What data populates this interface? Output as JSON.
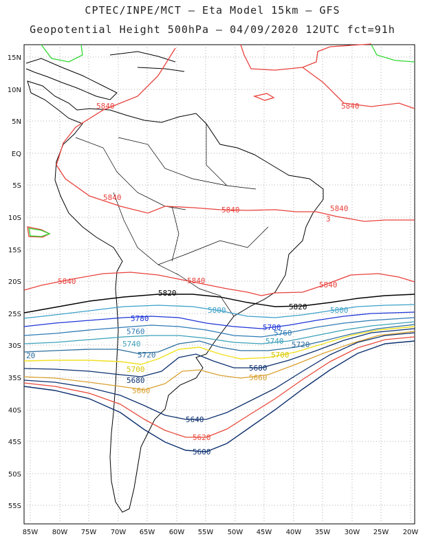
{
  "header": {
    "line1": "CPTEC/INPE/MCT –  Eta Model 15km – GFS",
    "line2": "Geopotential Height 500hPa – 04/09/2020 12UTC fct=91h"
  },
  "axes": {
    "lat_labels": [
      "15N",
      "10N",
      "5N",
      "EQ",
      "5S",
      "10S",
      "15S",
      "20S",
      "25S",
      "30S",
      "35S",
      "40S",
      "45S",
      "50S",
      "55S"
    ],
    "lon_labels": [
      "85W",
      "80W",
      "75W",
      "70W",
      "65W",
      "60W",
      "55W",
      "50W",
      "45W",
      "40W",
      "35W",
      "30W",
      "25W",
      "20W"
    ]
  },
  "contours": [
    {
      "value": "5840",
      "color": "#e8413c"
    },
    {
      "value": "5820",
      "color": "#000000"
    },
    {
      "value": "5800",
      "color": "#3ba0c8"
    },
    {
      "value": "5780",
      "color": "#1e35d6"
    },
    {
      "value": "5760",
      "color": "#2e7bb5"
    },
    {
      "value": "5740",
      "color": "#3aa0b8"
    },
    {
      "value": "5720",
      "color": "#2c6e9e"
    },
    {
      "value": "5700",
      "color": "#f0e020"
    },
    {
      "value": "5680",
      "color": "#0c2f6e"
    },
    {
      "value": "5660",
      "color": "#d9a030"
    },
    {
      "value": "5640",
      "color": "#0c2f6e"
    },
    {
      "value": "5620",
      "color": "#e84a3c"
    },
    {
      "value": "5600",
      "color": "#0c2f6e"
    }
  ],
  "contour_labels": {
    "c5840": "5840",
    "c5820": "5820",
    "c5800": "5800",
    "c5780": "5780",
    "c5760": "5760",
    "c5740": "5740",
    "c5720": "5720",
    "c5720_edge": "20",
    "c5700": "5700",
    "c5680": "5680",
    "c5660": "5660",
    "c5640": "5640",
    "c5620": "5620",
    "c5600": "5600",
    "small_3": "3"
  }
}
